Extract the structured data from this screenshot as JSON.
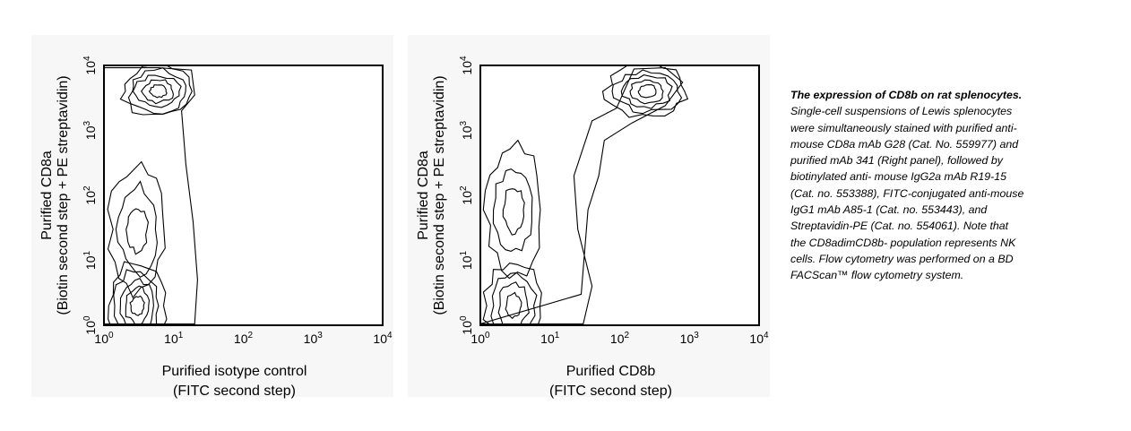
{
  "chart_data": [
    {
      "type": "contour",
      "ylabel_line1": "Purified CD8a",
      "ylabel_line2": "(Biotin second step + PE streptavidin)",
      "xlabel_line1": "Purified isotype control",
      "xlabel_line2": "(FITC second step)",
      "x_scale": "log",
      "y_scale": "log",
      "xlim": [
        1,
        10000
      ],
      "ylim": [
        1,
        10000
      ],
      "x_ticks": [
        {
          "base": "10",
          "exp": "0",
          "value": 1
        },
        {
          "base": "10",
          "exp": "1",
          "value": 10
        },
        {
          "base": "10",
          "exp": "2",
          "value": 100
        },
        {
          "base": "10",
          "exp": "3",
          "value": 1000
        },
        {
          "base": "10",
          "exp": "4",
          "value": 10000
        }
      ],
      "y_ticks": [
        {
          "base": "10",
          "exp": "0",
          "value": 1
        },
        {
          "base": "10",
          "exp": "1",
          "value": 10
        },
        {
          "base": "10",
          "exp": "2",
          "value": 100
        },
        {
          "base": "10",
          "exp": "3",
          "value": 1000
        },
        {
          "base": "10",
          "exp": "4",
          "value": 10000
        }
      ],
      "populations": [
        {
          "center": [
            6,
            4000
          ],
          "level": "high"
        },
        {
          "center": [
            3,
            2
          ],
          "level": "high"
        },
        {
          "center": [
            3,
            30
          ],
          "level": "low"
        }
      ]
    },
    {
      "type": "contour",
      "ylabel_line1": "Purified CD8a",
      "ylabel_line2": "(Biotin second step + PE streptavidin)",
      "xlabel_line1": "Purified CD8b",
      "xlabel_line2": "(FITC second step)",
      "x_scale": "log",
      "y_scale": "log",
      "xlim": [
        1,
        10000
      ],
      "ylim": [
        1,
        10000
      ],
      "x_ticks": [
        {
          "base": "10",
          "exp": "0",
          "value": 1
        },
        {
          "base": "10",
          "exp": "1",
          "value": 10
        },
        {
          "base": "10",
          "exp": "2",
          "value": 100
        },
        {
          "base": "10",
          "exp": "3",
          "value": 1000
        },
        {
          "base": "10",
          "exp": "4",
          "value": 10000
        }
      ],
      "y_ticks": [
        {
          "base": "10",
          "exp": "0",
          "value": 1
        },
        {
          "base": "10",
          "exp": "1",
          "value": 10
        },
        {
          "base": "10",
          "exp": "2",
          "value": 100
        },
        {
          "base": "10",
          "exp": "3",
          "value": 1000
        },
        {
          "base": "10",
          "exp": "4",
          "value": 10000
        }
      ],
      "populations": [
        {
          "center": [
            250,
            4000
          ],
          "level": "high"
        },
        {
          "center": [
            3,
            2
          ],
          "level": "medium"
        },
        {
          "center": [
            3,
            60
          ],
          "level": "low"
        }
      ]
    }
  ],
  "caption": {
    "title": "The expression of CD8b on rat splenocytes.",
    "body": " Single-cell suspensions of Lewis splenocytes were simultaneously stained with purified anti-mouse CD8a mAb G28 (Cat. No. 559977) and purified mAb 341 (Right panel), followed by biotinylated anti- mouse IgG2a mAb R19-15 (Cat. no. 553388), FITC-conjugated anti-mouse IgG1 mAb A85-1 (Cat. no. 553443), and Streptavidin-PE (Cat. no. 554061). Note that the CD8adimCD8b- population represents NK cells. Flow cytometry was performed on a BD  FACScan™ flow cytometry system."
  }
}
